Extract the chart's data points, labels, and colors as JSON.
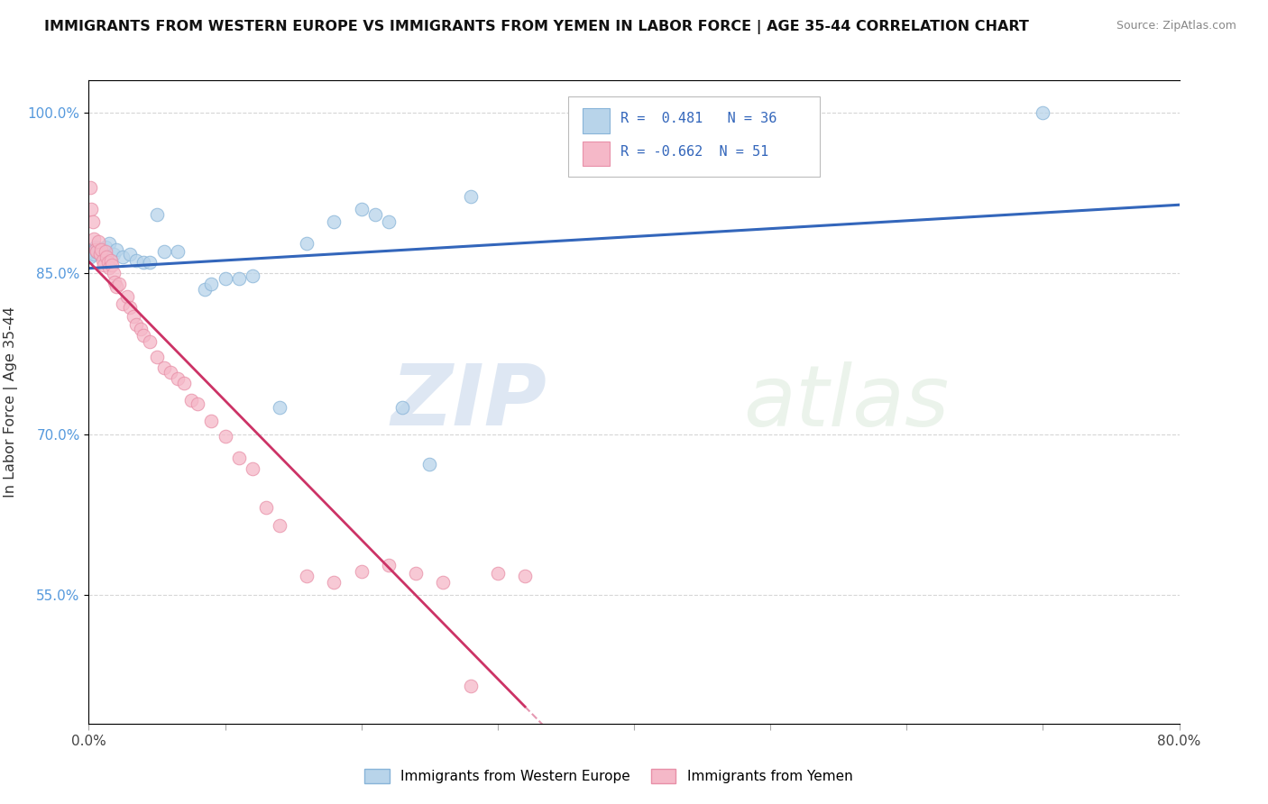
{
  "title": "IMMIGRANTS FROM WESTERN EUROPE VS IMMIGRANTS FROM YEMEN IN LABOR FORCE | AGE 35-44 CORRELATION CHART",
  "source": "Source: ZipAtlas.com",
  "ylabel": "In Labor Force | Age 35-44",
  "xlim": [
    0.0,
    0.8
  ],
  "ylim": [
    0.43,
    1.03
  ],
  "y_ticks": [
    0.55,
    0.7,
    0.85,
    1.0
  ],
  "y_tick_labels": [
    "55.0%",
    "70.0%",
    "85.0%",
    "100.0%"
  ],
  "legend_blue_label": "Immigrants from Western Europe",
  "legend_pink_label": "Immigrants from Yemen",
  "R_blue": 0.481,
  "N_blue": 36,
  "R_pink": -0.662,
  "N_pink": 51,
  "blue_color": "#b8d4ea",
  "pink_color": "#f5b8c8",
  "blue_edge": "#88b4d8",
  "pink_edge": "#e890a8",
  "blue_line_color": "#3366bb",
  "pink_line_color": "#cc3366",
  "watermark_zip": "ZIP",
  "watermark_atlas": "atlas",
  "dot_size": 110,
  "dot_alpha": 0.75,
  "background_color": "#ffffff",
  "grid_color": "#cccccc",
  "grid_style": "--",
  "grid_alpha": 0.8,
  "blue_dots_x": [
    0.001,
    0.002,
    0.003,
    0.004,
    0.005,
    0.006,
    0.007,
    0.008,
    0.01,
    0.012,
    0.015,
    0.018,
    0.02,
    0.025,
    0.03,
    0.035,
    0.04,
    0.045,
    0.05,
    0.055,
    0.065,
    0.085,
    0.09,
    0.1,
    0.11,
    0.12,
    0.14,
    0.16,
    0.18,
    0.2,
    0.21,
    0.22,
    0.23,
    0.25,
    0.28,
    0.7
  ],
  "blue_dots_y": [
    0.865,
    0.872,
    0.87,
    0.868,
    0.875,
    0.87,
    0.872,
    0.868,
    0.872,
    0.875,
    0.878,
    0.868,
    0.872,
    0.865,
    0.868,
    0.862,
    0.86,
    0.86,
    0.905,
    0.87,
    0.87,
    0.835,
    0.84,
    0.845,
    0.845,
    0.848,
    0.725,
    0.878,
    0.898,
    0.91,
    0.905,
    0.898,
    0.725,
    0.672,
    0.922,
    1.0
  ],
  "pink_dots_x": [
    0.001,
    0.002,
    0.003,
    0.004,
    0.005,
    0.006,
    0.007,
    0.008,
    0.009,
    0.01,
    0.011,
    0.012,
    0.013,
    0.014,
    0.015,
    0.016,
    0.017,
    0.018,
    0.019,
    0.02,
    0.022,
    0.025,
    0.028,
    0.03,
    0.033,
    0.035,
    0.038,
    0.04,
    0.045,
    0.05,
    0.055,
    0.06,
    0.065,
    0.07,
    0.075,
    0.08,
    0.09,
    0.1,
    0.11,
    0.12,
    0.13,
    0.14,
    0.16,
    0.18,
    0.2,
    0.22,
    0.24,
    0.26,
    0.28,
    0.3,
    0.32
  ],
  "pink_dots_y": [
    0.93,
    0.91,
    0.898,
    0.882,
    0.872,
    0.87,
    0.88,
    0.868,
    0.872,
    0.862,
    0.858,
    0.87,
    0.865,
    0.86,
    0.855,
    0.862,
    0.858,
    0.85,
    0.842,
    0.838,
    0.84,
    0.822,
    0.828,
    0.818,
    0.81,
    0.802,
    0.798,
    0.792,
    0.786,
    0.772,
    0.762,
    0.758,
    0.752,
    0.748,
    0.732,
    0.728,
    0.712,
    0.698,
    0.678,
    0.668,
    0.632,
    0.615,
    0.568,
    0.562,
    0.572,
    0.578,
    0.57,
    0.562,
    0.465,
    0.57,
    0.568
  ]
}
